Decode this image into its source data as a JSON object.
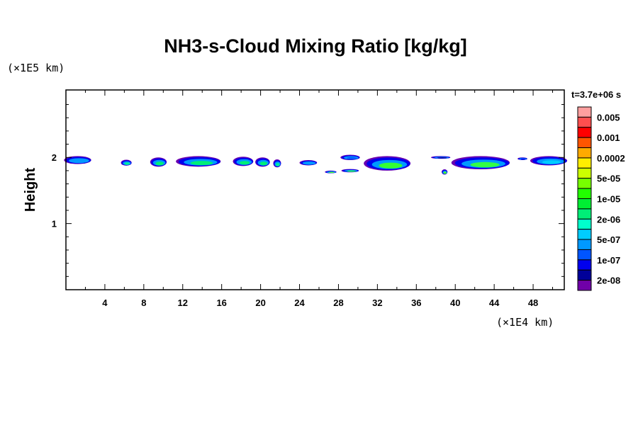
{
  "chart_data": {
    "type": "heatmap",
    "title": "NH3-s-Cloud Mixing Ratio [kg/kg]",
    "xlabel": "",
    "ylabel": "Height",
    "x_unit": "(×1E4 km)",
    "y_unit": "(×1E5 km)",
    "time_label": "t=3.7e+06 s",
    "xlim": [
      0,
      51.2
    ],
    "ylim": [
      0,
      3.02
    ],
    "x_ticks": [
      4,
      8,
      12,
      16,
      20,
      24,
      28,
      32,
      36,
      40,
      44,
      48
    ],
    "y_ticks": [
      1,
      2
    ],
    "colorbar": {
      "colors": [
        "#ff9f9f",
        "#ff4f4f",
        "#ff0000",
        "#ff5500",
        "#ffaa00",
        "#ffee00",
        "#ccff00",
        "#77ff00",
        "#22ff00",
        "#00ee33",
        "#00ee77",
        "#00ffcc",
        "#00ccff",
        "#0099ff",
        "#0055ff",
        "#0000ee",
        "#000099",
        "#7000a8"
      ],
      "labels": [
        "0.005",
        "0.001",
        "0.0002",
        "5e-05",
        "1e-05",
        "2e-06",
        "5e-07",
        "1e-07",
        "2e-08"
      ]
    },
    "cloud_features": [
      {
        "x": 1.2,
        "xw": 1.4,
        "y": 1.96,
        "yh": 0.06,
        "core": "#0099ff"
      },
      {
        "x": 6.2,
        "xw": 0.55,
        "y": 1.92,
        "yh": 0.045,
        "core": "#00ee99"
      },
      {
        "x": 9.5,
        "xw": 0.85,
        "y": 1.93,
        "yh": 0.07,
        "core": "#00ee77"
      },
      {
        "x": 13.6,
        "xw": 2.3,
        "y": 1.94,
        "yh": 0.08,
        "core": "#00ee77"
      },
      {
        "x": 18.2,
        "xw": 1.05,
        "y": 1.94,
        "yh": 0.07,
        "core": "#00ee77"
      },
      {
        "x": 20.2,
        "xw": 0.75,
        "y": 1.93,
        "yh": 0.07,
        "core": "#00ee77"
      },
      {
        "x": 21.7,
        "xw": 0.4,
        "y": 1.91,
        "yh": 0.06,
        "core": "#00ee99"
      },
      {
        "x": 24.9,
        "xw": 0.9,
        "y": 1.92,
        "yh": 0.04,
        "core": "#0099ff"
      },
      {
        "x": 29.2,
        "xw": 1.0,
        "y": 2.0,
        "yh": 0.04,
        "core": "#0055ff"
      },
      {
        "x": 33.0,
        "xw": 2.4,
        "y": 1.91,
        "yh": 0.11,
        "core": "#33ff33"
      },
      {
        "x": 27.2,
        "xw": 0.6,
        "y": 1.78,
        "yh": 0.02,
        "core": "#55ff22"
      },
      {
        "x": 29.2,
        "xw": 0.9,
        "y": 1.8,
        "yh": 0.025,
        "core": "#33ff55"
      },
      {
        "x": 38.9,
        "xw": 0.3,
        "y": 1.78,
        "yh": 0.04,
        "core": "#55ff22"
      },
      {
        "x": 38.5,
        "xw": 1.0,
        "y": 2.0,
        "yh": 0.02,
        "core": "#000099"
      },
      {
        "x": 42.6,
        "xw": 3.0,
        "y": 1.92,
        "yh": 0.1,
        "core": "#33ff44"
      },
      {
        "x": 46.9,
        "xw": 0.5,
        "y": 1.98,
        "yh": 0.02,
        "core": "#0000ee"
      },
      {
        "x": 49.6,
        "xw": 1.9,
        "y": 1.95,
        "yh": 0.07,
        "core": "#00ccff"
      }
    ]
  }
}
